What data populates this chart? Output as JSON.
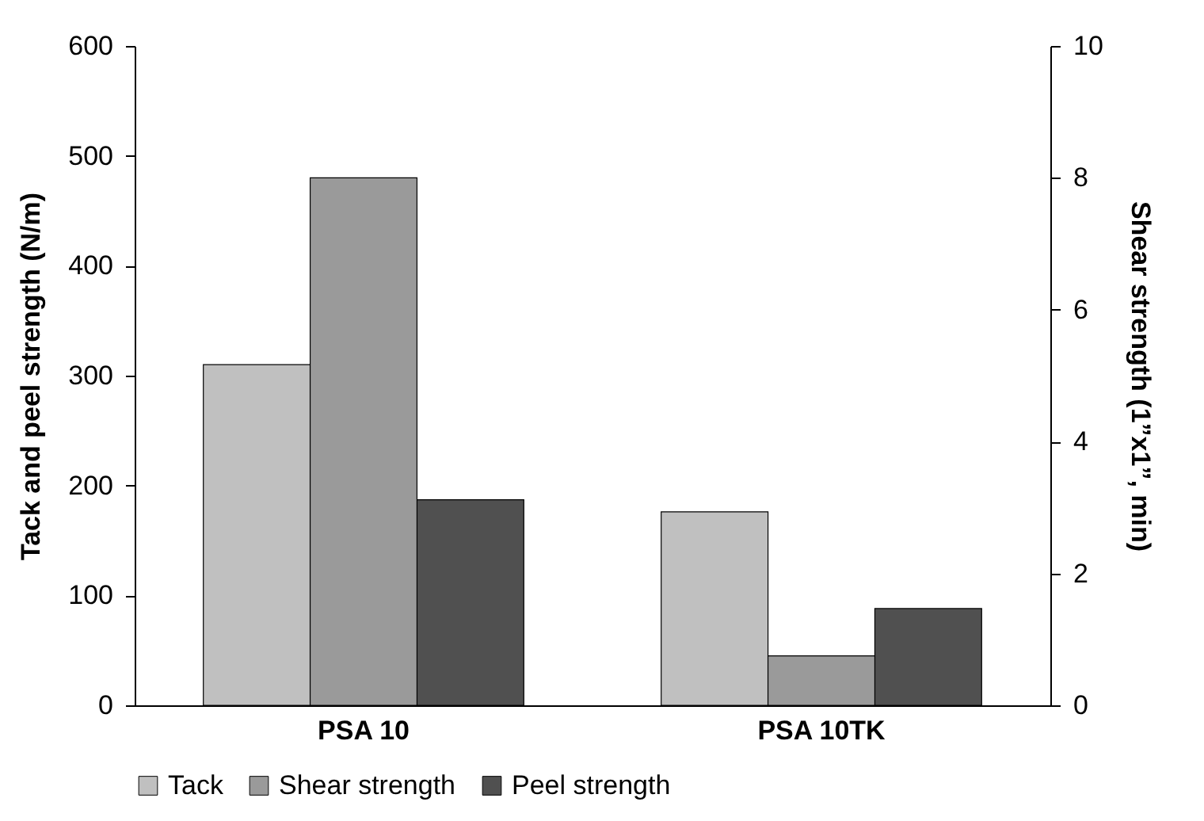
{
  "chart_data": {
    "type": "bar",
    "categories": [
      "PSA 10",
      "PSA 10TK"
    ],
    "ylabel": "Tack and peel strength (N/m)",
    "y2label": "Shear strength (1”x1”, min)",
    "series": [
      {
        "name": "Tack",
        "color": "#c0c0c0",
        "values": [
          310,
          176
        ]
      },
      {
        "name": "Shear strength",
        "color": "#9a9a9a",
        "values": [
          8.0,
          0.75
        ],
        "axis": "y2"
      },
      {
        "name": "Peel strength",
        "color": "#505050",
        "values": [
          187,
          88
        ]
      }
    ],
    "ylim": [
      0,
      600
    ],
    "yticks": [
      0,
      100,
      200,
      300,
      400,
      500,
      600
    ],
    "y2lim": [
      0,
      10
    ],
    "y2ticks": [
      0,
      2,
      4,
      6,
      8,
      10
    ],
    "grid": false,
    "legend": "bottom"
  }
}
